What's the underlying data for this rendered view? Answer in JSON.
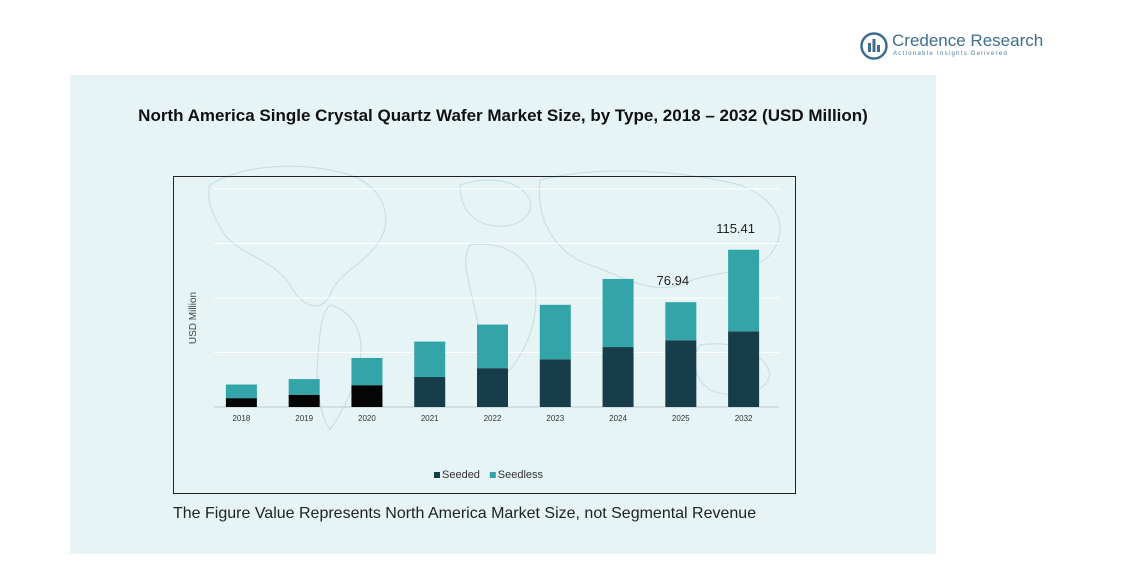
{
  "brand": {
    "name": "Credence Research",
    "tagline": "Actionable Insights Delivered",
    "icon": "bar-chart-circle-icon",
    "color": "#3f6d8d"
  },
  "colors": {
    "seeded": "#173d4b",
    "seedless": "#33a5a8",
    "early_seeded": "#050505",
    "panel": "#e6f4f6",
    "grid": "#ffffff"
  },
  "chart_data": {
    "type": "bar",
    "stacked": true,
    "title": "North America Single Crystal Quartz Wafer Market Size, by Type, 2018 – 2032 (USD Million)",
    "ylabel": "USD Million",
    "xlabel": "",
    "categories": [
      "2018",
      "2019",
      "2020",
      "2021",
      "2022",
      "2023",
      "2024",
      "2025",
      "2032"
    ],
    "series": [
      {
        "name": "Seeded",
        "values": [
          6.5,
          9,
          16,
          22,
          28.5,
          35,
          44,
          49,
          55.5
        ]
      },
      {
        "name": "Seedless",
        "values": [
          10,
          11.5,
          20,
          26,
          32,
          40,
          50,
          27.94,
          59.91
        ]
      }
    ],
    "data_labels": [
      {
        "category": "2025",
        "value": "76.94"
      },
      {
        "category": "2032",
        "value": "115.41"
      }
    ],
    "ylim": [
      0,
      160
    ],
    "grid": true,
    "legend": "bottom-center"
  },
  "footnote": "The Figure Value Represents North America Market Size, not Segmental Revenue"
}
